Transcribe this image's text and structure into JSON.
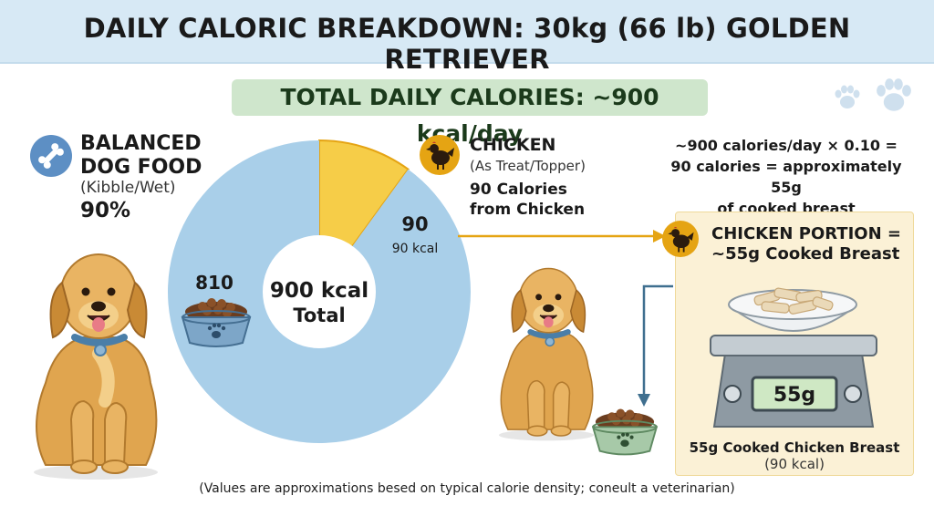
{
  "title": "DAILY CALORIC BREAKDOWN: 30kg (66 lb) GOLDEN RETRIEVER",
  "total_banner": "TOTAL DAILY CALORIES: ~900 kcal/day",
  "food": {
    "title_line1": "BALANCED",
    "title_line2": "DOG FOOD",
    "subtitle": "(Kibble/Wet)",
    "percent": "90%"
  },
  "chicken": {
    "title": "CHICKEN",
    "subtitle": "(As Treat/Topper)",
    "calories_line1": "90 Calories",
    "calories_line2": "from Chicken"
  },
  "calculation": {
    "line1": "~900 calories/day × 0.10 =",
    "line2": "90 calories = approximately 55g",
    "line3": "of cooked breast"
  },
  "portion": {
    "title_line1": "CHICKEN PORTION =",
    "title_line2": "~55g Cooked Breast",
    "scale_reading": "55g",
    "caption": "55g Cooked Chicken Breast",
    "caption_sub": "(90 kcal)"
  },
  "footnote": "(Values are approximations besed on typical calorie density; coneult a veterinarian)",
  "icons": [
    "bone-icon",
    "chicken-icon",
    "paw-print-icon",
    "dog-bowl-icon",
    "kitchen-scale-icon",
    "golden-retriever-illustration"
  ],
  "colors": {
    "header_bg": "#d7e9f5",
    "banner_bg": "#cfe6cc",
    "food_slice": "#a9cfe9",
    "chicken_slice": "#f6cd48",
    "accent_gold": "#e5a413",
    "portion_bg": "#fbf1d6"
  },
  "chart_data": {
    "type": "pie",
    "title": "",
    "center_label_line1": "900 kcal",
    "center_label_line2": "Total",
    "total": 900,
    "unit": "kcal",
    "slices": [
      {
        "name": "BALANCED DOG FOOD",
        "value": 810,
        "label": "810",
        "color": "#a9cfe9"
      },
      {
        "name": "CHICKEN",
        "value": 90,
        "label": "90",
        "sublabel": "90 kcal",
        "color": "#f6cd48"
      }
    ]
  }
}
